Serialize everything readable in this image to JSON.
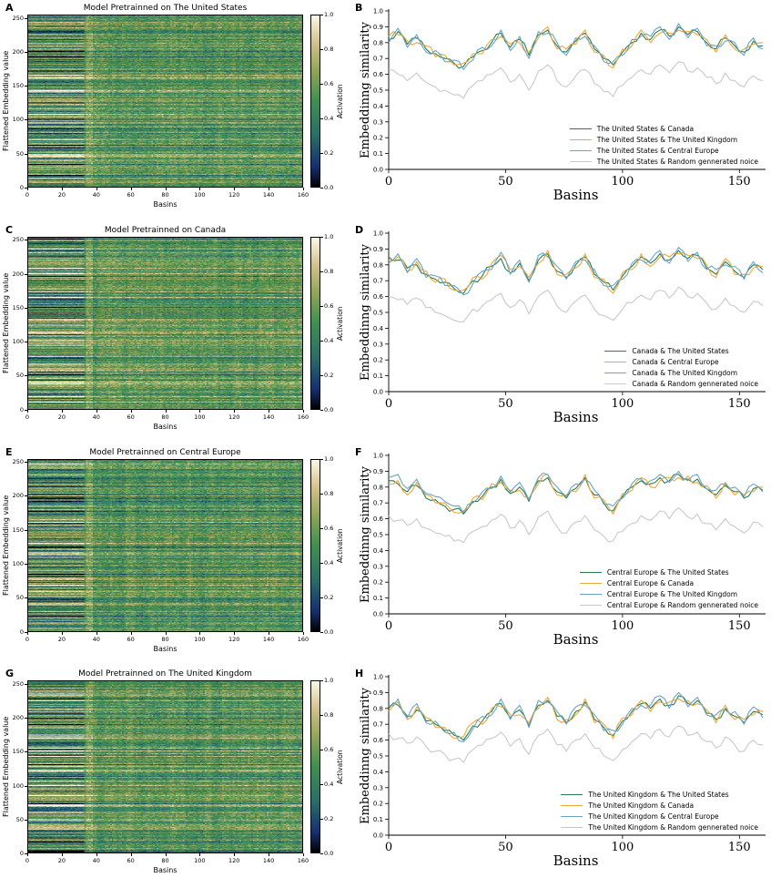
{
  "palette": {
    "series_green": "#2a7d4f",
    "series_orange": "#f0a63a",
    "series_blue": "#6aa3c8",
    "series_gray": "#c9c9c9",
    "axis_color": "#000000",
    "colormap_stops": [
      [
        0.0,
        "#000000"
      ],
      [
        0.12,
        "#16306e"
      ],
      [
        0.3,
        "#2c6d68"
      ],
      [
        0.5,
        "#3f8f53"
      ],
      [
        0.68,
        "#94a657"
      ],
      [
        0.84,
        "#d5c28f"
      ],
      [
        1.0,
        "#fdfae9"
      ]
    ]
  },
  "chart_data": [
    {
      "panel": "A",
      "type": "heatmap",
      "title": "Model Pretrainned on The United States",
      "xlabel": "Basins",
      "ylabel": "Flattened Embedding value",
      "x_range": [
        0,
        160
      ],
      "y_range": [
        0,
        255
      ],
      "x_ticks": [
        0,
        20,
        40,
        60,
        80,
        100,
        120,
        140,
        160
      ],
      "y_ticks": [
        0,
        50,
        100,
        150,
        200,
        250
      ],
      "colorbar": {
        "label": "Activation",
        "ticks": [
          0.0,
          0.2,
          0.4,
          0.6,
          0.8,
          1.0
        ]
      },
      "colormap": "gist_earth",
      "seed": 3
    },
    {
      "panel": "B",
      "type": "line",
      "xlabel": "Basins",
      "ylabel": "Embeddinng similarity",
      "x_range": [
        0,
        160
      ],
      "y_range": [
        0.0,
        1.0
      ],
      "x_step": 4,
      "x_ticks": [
        0,
        50,
        100,
        150
      ],
      "y_ticks": [
        0.0,
        0.1,
        0.2,
        0.3,
        0.4,
        0.5,
        0.6,
        0.7,
        0.8,
        0.9,
        1.0
      ],
      "series": [
        {
          "name": "The United States & Canada",
          "color": "#2a7d4f",
          "values": [
            0.82,
            0.87,
            0.79,
            0.83,
            0.76,
            0.73,
            0.7,
            0.67,
            0.65,
            0.71,
            0.75,
            0.8,
            0.86,
            0.77,
            0.82,
            0.72,
            0.85,
            0.88,
            0.78,
            0.74,
            0.81,
            0.86,
            0.76,
            0.7,
            0.66,
            0.74,
            0.8,
            0.86,
            0.82,
            0.88,
            0.84,
            0.9,
            0.85,
            0.87,
            0.8,
            0.76,
            0.83,
            0.78,
            0.74,
            0.81,
            0.78
          ]
        },
        {
          "name": "The United States & The United Kingdom",
          "color": "#f0a63a",
          "values": [
            0.84,
            0.85,
            0.81,
            0.8,
            0.78,
            0.71,
            0.72,
            0.66,
            0.67,
            0.73,
            0.73,
            0.82,
            0.84,
            0.79,
            0.8,
            0.74,
            0.83,
            0.9,
            0.76,
            0.76,
            0.79,
            0.88,
            0.74,
            0.72,
            0.64,
            0.76,
            0.78,
            0.88,
            0.8,
            0.86,
            0.86,
            0.88,
            0.87,
            0.85,
            0.82,
            0.74,
            0.85,
            0.76,
            0.76,
            0.79,
            0.8
          ]
        },
        {
          "name": "The United States & Central Europe",
          "color": "#6aa3c8",
          "values": [
            0.8,
            0.89,
            0.77,
            0.85,
            0.74,
            0.75,
            0.68,
            0.69,
            0.63,
            0.69,
            0.77,
            0.78,
            0.88,
            0.75,
            0.84,
            0.7,
            0.87,
            0.86,
            0.8,
            0.72,
            0.83,
            0.84,
            0.78,
            0.68,
            0.68,
            0.72,
            0.82,
            0.84,
            0.84,
            0.9,
            0.82,
            0.92,
            0.83,
            0.89,
            0.78,
            0.78,
            0.81,
            0.8,
            0.72,
            0.83,
            0.76
          ]
        },
        {
          "name": "The United States & Random gennerated noice",
          "color": "#c9c9c9",
          "values": [
            0.63,
            0.6,
            0.56,
            0.61,
            0.55,
            0.52,
            0.5,
            0.47,
            0.45,
            0.53,
            0.56,
            0.6,
            0.64,
            0.55,
            0.6,
            0.5,
            0.62,
            0.66,
            0.56,
            0.52,
            0.59,
            0.63,
            0.54,
            0.49,
            0.46,
            0.53,
            0.58,
            0.63,
            0.6,
            0.66,
            0.61,
            0.68,
            0.62,
            0.64,
            0.58,
            0.54,
            0.61,
            0.56,
            0.52,
            0.59,
            0.56
          ]
        }
      ]
    },
    {
      "panel": "C",
      "type": "heatmap",
      "title": "Model Pretrainned on Canada",
      "xlabel": "Basins",
      "ylabel": "Flattened Embedding value",
      "x_range": [
        0,
        160
      ],
      "y_range": [
        0,
        255
      ],
      "x_ticks": [
        0,
        20,
        40,
        60,
        80,
        100,
        120,
        140,
        160
      ],
      "y_ticks": [
        0,
        50,
        100,
        150,
        200,
        250
      ],
      "colorbar": {
        "label": "Activation",
        "ticks": [
          0.0,
          0.2,
          0.4,
          0.6,
          0.8,
          1.0
        ]
      },
      "colormap": "gist_earth",
      "seed": 7
    },
    {
      "panel": "D",
      "type": "line",
      "xlabel": "Basins",
      "ylabel": "Embeddinng similarity",
      "x_range": [
        0,
        160
      ],
      "y_range": [
        0.0,
        1.0
      ],
      "x_step": 4,
      "x_ticks": [
        0,
        50,
        100,
        150
      ],
      "y_ticks": [
        0.0,
        0.1,
        0.2,
        0.3,
        0.4,
        0.5,
        0.6,
        0.7,
        0.8,
        0.9,
        1.0
      ],
      "series": [
        {
          "name": "Canada & The United States",
          "color": "#2a7d4f",
          "values": [
            0.85,
            0.83,
            0.78,
            0.8,
            0.74,
            0.71,
            0.69,
            0.65,
            0.62,
            0.7,
            0.73,
            0.79,
            0.84,
            0.75,
            0.81,
            0.7,
            0.83,
            0.87,
            0.76,
            0.72,
            0.8,
            0.85,
            0.74,
            0.69,
            0.64,
            0.73,
            0.79,
            0.85,
            0.81,
            0.87,
            0.83,
            0.89,
            0.84,
            0.86,
            0.78,
            0.74,
            0.82,
            0.76,
            0.72,
            0.8,
            0.77
          ]
        },
        {
          "name": "Canada & Central Europe",
          "color": "#f0a63a",
          "values": [
            0.83,
            0.85,
            0.76,
            0.82,
            0.76,
            0.69,
            0.71,
            0.64,
            0.64,
            0.72,
            0.71,
            0.81,
            0.86,
            0.77,
            0.79,
            0.72,
            0.81,
            0.89,
            0.74,
            0.74,
            0.78,
            0.87,
            0.72,
            0.71,
            0.62,
            0.75,
            0.77,
            0.87,
            0.79,
            0.85,
            0.85,
            0.87,
            0.86,
            0.84,
            0.8,
            0.72,
            0.84,
            0.74,
            0.74,
            0.78,
            0.79
          ]
        },
        {
          "name": "Canada & The United Kingdom",
          "color": "#6aa3c8",
          "values": [
            0.81,
            0.87,
            0.75,
            0.84,
            0.72,
            0.73,
            0.67,
            0.67,
            0.61,
            0.68,
            0.76,
            0.77,
            0.88,
            0.74,
            0.83,
            0.69,
            0.86,
            0.85,
            0.79,
            0.71,
            0.82,
            0.83,
            0.77,
            0.67,
            0.67,
            0.71,
            0.81,
            0.83,
            0.83,
            0.89,
            0.81,
            0.91,
            0.82,
            0.88,
            0.77,
            0.77,
            0.8,
            0.79,
            0.71,
            0.82,
            0.75
          ]
        },
        {
          "name": "Canada & Random gennerated noice",
          "color": "#c9c9c9",
          "values": [
            0.6,
            0.58,
            0.55,
            0.59,
            0.53,
            0.5,
            0.48,
            0.45,
            0.44,
            0.52,
            0.54,
            0.58,
            0.62,
            0.53,
            0.58,
            0.49,
            0.6,
            0.64,
            0.54,
            0.5,
            0.57,
            0.61,
            0.52,
            0.48,
            0.45,
            0.52,
            0.56,
            0.61,
            0.58,
            0.64,
            0.59,
            0.66,
            0.6,
            0.62,
            0.56,
            0.52,
            0.59,
            0.54,
            0.5,
            0.57,
            0.54
          ]
        }
      ]
    },
    {
      "panel": "E",
      "type": "heatmap",
      "title": "Model Pretrainned on Central Europe",
      "xlabel": "Basins",
      "ylabel": "Flattened Embedding value",
      "x_range": [
        0,
        160
      ],
      "y_range": [
        0,
        255
      ],
      "x_ticks": [
        0,
        20,
        40,
        60,
        80,
        100,
        120,
        140,
        160
      ],
      "y_ticks": [
        0,
        50,
        100,
        150,
        200,
        250
      ],
      "colorbar": {
        "label": "Activation",
        "ticks": [
          0.0,
          0.2,
          0.4,
          0.6,
          0.8,
          1.0
        ]
      },
      "colormap": "gist_earth",
      "seed": 11
    },
    {
      "panel": "F",
      "type": "line",
      "xlabel": "Basins",
      "ylabel": "Embeddinng similarity",
      "x_range": [
        0,
        160
      ],
      "y_range": [
        0.0,
        1.0
      ],
      "x_step": 4,
      "x_ticks": [
        0,
        50,
        100,
        150
      ],
      "y_ticks": [
        0.0,
        0.1,
        0.2,
        0.3,
        0.4,
        0.5,
        0.6,
        0.7,
        0.8,
        0.9,
        1.0
      ],
      "series": [
        {
          "name": "Central Europe & The United States",
          "color": "#2a7d4f",
          "values": [
            0.84,
            0.82,
            0.77,
            0.81,
            0.73,
            0.72,
            0.68,
            0.66,
            0.63,
            0.71,
            0.74,
            0.8,
            0.85,
            0.76,
            0.8,
            0.71,
            0.84,
            0.86,
            0.77,
            0.73,
            0.79,
            0.86,
            0.75,
            0.7,
            0.65,
            0.74,
            0.8,
            0.84,
            0.82,
            0.86,
            0.84,
            0.88,
            0.85,
            0.85,
            0.79,
            0.75,
            0.81,
            0.77,
            0.73,
            0.79,
            0.78
          ]
        },
        {
          "name": "Central Europe & Canada",
          "color": "#f0a63a",
          "values": [
            0.82,
            0.84,
            0.75,
            0.83,
            0.75,
            0.7,
            0.7,
            0.64,
            0.65,
            0.73,
            0.72,
            0.82,
            0.83,
            0.78,
            0.78,
            0.73,
            0.82,
            0.88,
            0.75,
            0.75,
            0.77,
            0.88,
            0.73,
            0.72,
            0.63,
            0.76,
            0.78,
            0.86,
            0.8,
            0.84,
            0.86,
            0.86,
            0.87,
            0.83,
            0.81,
            0.73,
            0.83,
            0.75,
            0.75,
            0.77,
            0.8
          ]
        },
        {
          "name": "Central Europe & The United Kingdom",
          "color": "#6aa3c8",
          "values": [
            0.86,
            0.88,
            0.79,
            0.85,
            0.76,
            0.74,
            0.71,
            0.68,
            0.64,
            0.7,
            0.77,
            0.79,
            0.87,
            0.77,
            0.83,
            0.72,
            0.86,
            0.88,
            0.8,
            0.74,
            0.82,
            0.85,
            0.78,
            0.69,
            0.68,
            0.73,
            0.82,
            0.85,
            0.84,
            0.88,
            0.83,
            0.9,
            0.84,
            0.88,
            0.79,
            0.78,
            0.82,
            0.8,
            0.74,
            0.82,
            0.77
          ]
        },
        {
          "name": "Central Europe & Random gennerated noice",
          "color": "#c9c9c9",
          "values": [
            0.62,
            0.59,
            0.56,
            0.6,
            0.54,
            0.51,
            0.49,
            0.46,
            0.45,
            0.52,
            0.55,
            0.59,
            0.63,
            0.54,
            0.59,
            0.5,
            0.61,
            0.65,
            0.55,
            0.51,
            0.58,
            0.62,
            0.53,
            0.49,
            0.46,
            0.52,
            0.57,
            0.62,
            0.59,
            0.65,
            0.6,
            0.67,
            0.61,
            0.63,
            0.57,
            0.53,
            0.6,
            0.55,
            0.51,
            0.58,
            0.55
          ]
        }
      ]
    },
    {
      "panel": "G",
      "type": "heatmap",
      "title": "Model Pretrainned on The United Kingdom",
      "xlabel": "Basins",
      "ylabel": "Flattened Embedding value",
      "x_range": [
        0,
        160
      ],
      "y_range": [
        0,
        255
      ],
      "x_ticks": [
        0,
        20,
        40,
        60,
        80,
        100,
        120,
        140,
        160
      ],
      "y_ticks": [
        0,
        50,
        100,
        150,
        200,
        250
      ],
      "colorbar": {
        "label": "Activation",
        "ticks": [
          0.0,
          0.2,
          0.4,
          0.6,
          0.8,
          1.0
        ]
      },
      "colormap": "gist_earth",
      "seed": 13
    },
    {
      "panel": "H",
      "type": "line",
      "xlabel": "Basins",
      "ylabel": "Embeddinng similarity",
      "x_range": [
        0,
        160
      ],
      "y_range": [
        0.0,
        1.0
      ],
      "x_step": 4,
      "x_ticks": [
        0,
        50,
        100,
        150
      ],
      "y_ticks": [
        0.0,
        0.1,
        0.2,
        0.3,
        0.4,
        0.5,
        0.6,
        0.7,
        0.8,
        0.9,
        1.0
      ],
      "series": [
        {
          "name": "The United Kingdom & The United States",
          "color": "#2a7d4f",
          "values": [
            0.8,
            0.82,
            0.75,
            0.79,
            0.72,
            0.7,
            0.66,
            0.63,
            0.6,
            0.69,
            0.72,
            0.78,
            0.83,
            0.74,
            0.79,
            0.69,
            0.82,
            0.85,
            0.75,
            0.71,
            0.78,
            0.84,
            0.73,
            0.68,
            0.63,
            0.72,
            0.78,
            0.83,
            0.8,
            0.86,
            0.82,
            0.88,
            0.83,
            0.85,
            0.77,
            0.73,
            0.8,
            0.75,
            0.71,
            0.78,
            0.76
          ]
        },
        {
          "name": "The United Kingdom & Canada",
          "color": "#f0a63a",
          "values": [
            0.78,
            0.84,
            0.73,
            0.81,
            0.74,
            0.68,
            0.68,
            0.61,
            0.62,
            0.71,
            0.7,
            0.8,
            0.81,
            0.76,
            0.76,
            0.71,
            0.8,
            0.87,
            0.73,
            0.73,
            0.76,
            0.86,
            0.71,
            0.7,
            0.61,
            0.74,
            0.76,
            0.85,
            0.78,
            0.84,
            0.84,
            0.86,
            0.85,
            0.83,
            0.79,
            0.71,
            0.82,
            0.73,
            0.73,
            0.76,
            0.78
          ]
        },
        {
          "name": "The United Kingdom & Central Europe",
          "color": "#6aa3c8",
          "values": [
            0.82,
            0.86,
            0.74,
            0.83,
            0.71,
            0.72,
            0.65,
            0.65,
            0.59,
            0.67,
            0.75,
            0.76,
            0.86,
            0.73,
            0.82,
            0.68,
            0.85,
            0.84,
            0.78,
            0.7,
            0.81,
            0.82,
            0.76,
            0.66,
            0.66,
            0.7,
            0.8,
            0.82,
            0.82,
            0.88,
            0.8,
            0.9,
            0.81,
            0.87,
            0.76,
            0.76,
            0.79,
            0.78,
            0.7,
            0.81,
            0.74
          ]
        },
        {
          "name": "The United Kingdom & Random gennerated noice",
          "color": "#c9c9c9",
          "values": [
            0.64,
            0.61,
            0.58,
            0.62,
            0.56,
            0.53,
            0.51,
            0.48,
            0.46,
            0.54,
            0.57,
            0.61,
            0.65,
            0.56,
            0.61,
            0.51,
            0.63,
            0.67,
            0.57,
            0.53,
            0.6,
            0.64,
            0.55,
            0.5,
            0.47,
            0.54,
            0.59,
            0.64,
            0.61,
            0.67,
            0.62,
            0.69,
            0.63,
            0.65,
            0.59,
            0.55,
            0.62,
            0.57,
            0.53,
            0.6,
            0.57
          ]
        }
      ]
    }
  ]
}
